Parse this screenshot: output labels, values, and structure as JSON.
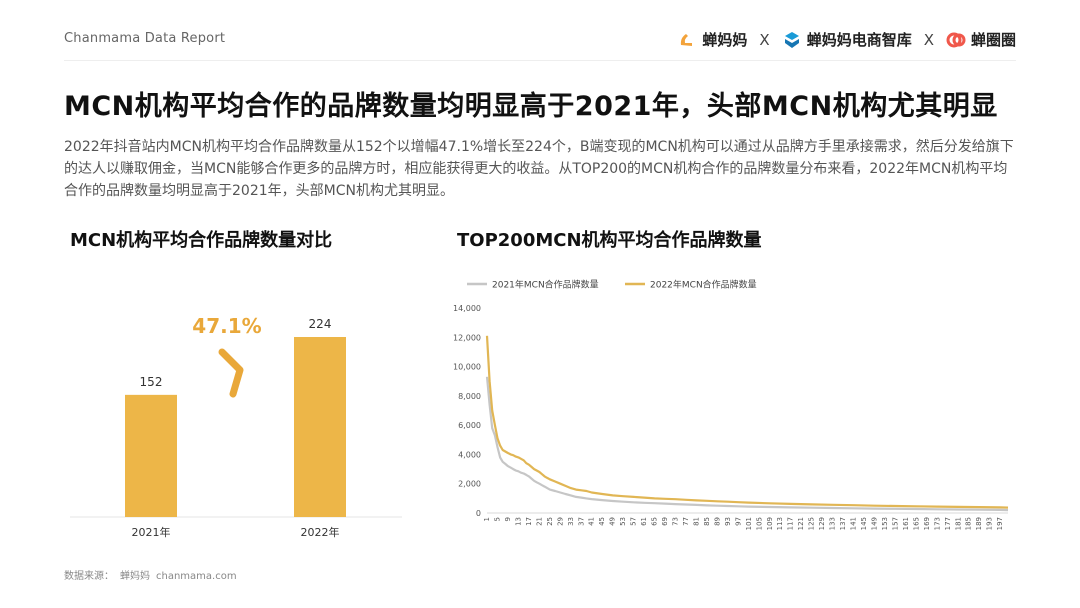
{
  "header": {
    "report_label": "Chanmama Data Report",
    "brands": [
      "蝉妈妈",
      "蝉妈妈电商智库",
      "蝉圈圈"
    ],
    "separator": "X",
    "brand_colors": [
      "#f3a33b",
      "#1a9bd7",
      "#f0584b"
    ]
  },
  "title": "MCN机构平均合作的品牌数量均明显高于2021年，头部MCN机构尤其明显",
  "description": "2022年抖音站内MCN机构平均合作品牌数量从152个以增幅47.1%增长至224个，B端变现的MCN机构可以通过从品牌方手里承接需求，然后分发给旗下的达人以赚取佣金，当MCN能够合作更多的品牌方时，相应能获得更大的收益。从TOP200的MCN机构合作的品牌数量分布来看，2022年MCN机构平均合作的品牌数量均明显高于2021年，头部MCN机构尤其明显。",
  "colors": {
    "bar": "#edb648",
    "accent": "#e9a83a",
    "line2021": "#c6c6c6",
    "line2022": "#e1b654"
  },
  "chart_data": [
    {
      "type": "bar",
      "title": "MCN机构平均合作品牌数量对比",
      "categories": [
        "2021年",
        "2022年"
      ],
      "values": [
        152,
        224
      ],
      "growth_label": "47.1%"
    },
    {
      "type": "line",
      "title": "TOP200MCN机构平均合作品牌数量",
      "legend_position": "top-left",
      "ylim": [
        0,
        14000
      ],
      "yticks": [
        0,
        2000,
        4000,
        6000,
        8000,
        10000,
        12000,
        14000
      ],
      "ytick_labels": [
        "0",
        "2,000",
        "4,000",
        "6,000",
        "8,000",
        "10,000",
        "12,000",
        "14,000"
      ],
      "x_range": [
        1,
        200
      ],
      "xtick_step": 4,
      "series": [
        {
          "name": "2021年MCN合作品牌数量",
          "points": [
            [
              1,
              9300
            ],
            [
              2,
              7400
            ],
            [
              3,
              5800
            ],
            [
              4,
              5300
            ],
            [
              5,
              4500
            ],
            [
              6,
              3800
            ],
            [
              7,
              3500
            ],
            [
              8,
              3350
            ],
            [
              9,
              3200
            ],
            [
              10,
              3100
            ],
            [
              11,
              3000
            ],
            [
              12,
              2900
            ],
            [
              13,
              2850
            ],
            [
              14,
              2750
            ],
            [
              15,
              2700
            ],
            [
              16,
              2600
            ],
            [
              17,
              2500
            ],
            [
              18,
              2350
            ],
            [
              19,
              2200
            ],
            [
              20,
              2100
            ],
            [
              21,
              2000
            ],
            [
              22,
              1900
            ],
            [
              23,
              1800
            ],
            [
              24,
              1700
            ],
            [
              25,
              1600
            ],
            [
              27,
              1500
            ],
            [
              29,
              1400
            ],
            [
              31,
              1300
            ],
            [
              33,
              1200
            ],
            [
              35,
              1100
            ],
            [
              37,
              1050
            ],
            [
              39,
              1000
            ],
            [
              41,
              950
            ],
            [
              45,
              880
            ],
            [
              49,
              820
            ],
            [
              53,
              770
            ],
            [
              57,
              730
            ],
            [
              61,
              700
            ],
            [
              65,
              670
            ],
            [
              69,
              640
            ],
            [
              73,
              610
            ],
            [
              77,
              580
            ],
            [
              81,
              550
            ],
            [
              85,
              520
            ],
            [
              89,
              500
            ],
            [
              93,
              480
            ],
            [
              97,
              460
            ],
            [
              101,
              440
            ],
            [
              109,
              410
            ],
            [
              117,
              380
            ],
            [
              125,
              360
            ],
            [
              133,
              340
            ],
            [
              141,
              320
            ],
            [
              149,
              300
            ],
            [
              157,
              285
            ],
            [
              165,
              270
            ],
            [
              173,
              255
            ],
            [
              181,
              240
            ],
            [
              189,
              225
            ],
            [
              197,
              210
            ],
            [
              200,
              200
            ]
          ]
        },
        {
          "name": "2022年MCN合作品牌数量",
          "points": [
            [
              1,
              12100
            ],
            [
              2,
              9000
            ],
            [
              3,
              7000
            ],
            [
              4,
              6000
            ],
            [
              5,
              5100
            ],
            [
              6,
              4600
            ],
            [
              7,
              4300
            ],
            [
              8,
              4200
            ],
            [
              9,
              4100
            ],
            [
              10,
              4000
            ],
            [
              11,
              3950
            ],
            [
              12,
              3850
            ],
            [
              13,
              3800
            ],
            [
              14,
              3700
            ],
            [
              15,
              3600
            ],
            [
              16,
              3400
            ],
            [
              17,
              3300
            ],
            [
              18,
              3150
            ],
            [
              19,
              3000
            ],
            [
              20,
              2900
            ],
            [
              21,
              2800
            ],
            [
              22,
              2650
            ],
            [
              23,
              2500
            ],
            [
              24,
              2400
            ],
            [
              25,
              2300
            ],
            [
              27,
              2150
            ],
            [
              29,
              2000
            ],
            [
              31,
              1850
            ],
            [
              33,
              1700
            ],
            [
              35,
              1600
            ],
            [
              37,
              1550
            ],
            [
              39,
              1500
            ],
            [
              41,
              1400
            ],
            [
              45,
              1300
            ],
            [
              49,
              1200
            ],
            [
              53,
              1150
            ],
            [
              57,
              1100
            ],
            [
              61,
              1050
            ],
            [
              65,
              1000
            ],
            [
              69,
              970
            ],
            [
              73,
              940
            ],
            [
              77,
              900
            ],
            [
              81,
              860
            ],
            [
              85,
              830
            ],
            [
              89,
              800
            ],
            [
              93,
              770
            ],
            [
              97,
              740
            ],
            [
              101,
              710
            ],
            [
              109,
              660
            ],
            [
              117,
              620
            ],
            [
              125,
              590
            ],
            [
              133,
              560
            ],
            [
              141,
              530
            ],
            [
              149,
              500
            ],
            [
              157,
              480
            ],
            [
              165,
              460
            ],
            [
              173,
              440
            ],
            [
              181,
              420
            ],
            [
              189,
              400
            ],
            [
              197,
              380
            ],
            [
              200,
              370
            ]
          ]
        }
      ]
    }
  ],
  "source": {
    "label": "数据来源：",
    "name": "蝉妈妈",
    "site": "chanmama.com"
  }
}
